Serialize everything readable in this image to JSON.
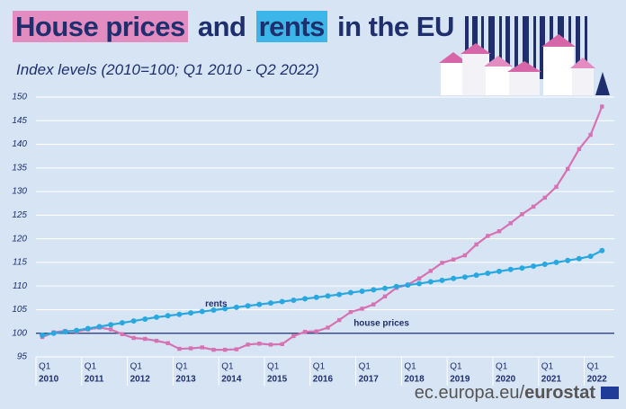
{
  "chart_data": {
    "type": "line",
    "title_parts": [
      "House prices",
      "and",
      "rents",
      "in the EU"
    ],
    "subtitle": "Index levels (2010=100; Q1 2010  - Q2 2022)",
    "source_parts": [
      "ec.europa.eu/",
      "eurostat"
    ],
    "categories": [
      "Q1",
      null,
      null,
      null,
      "Q1",
      null,
      null,
      null,
      "Q1",
      null,
      null,
      null,
      "Q1",
      null,
      null,
      null,
      "Q1",
      null,
      null,
      null,
      "Q1",
      null,
      null,
      null,
      "Q1",
      null,
      null,
      null,
      "Q1",
      null,
      null,
      null,
      "Q1",
      null,
      null,
      null,
      "Q1",
      null,
      null,
      null,
      "Q1",
      null,
      null,
      null,
      "Q1",
      null,
      null,
      null,
      "Q1",
      null
    ],
    "year_labels": [
      "2010",
      "2011",
      "2012",
      "2013",
      "2014",
      "2015",
      "2016",
      "2017",
      "2018",
      "2019",
      "2020",
      "2021",
      "2022"
    ],
    "series": [
      {
        "name": "house prices",
        "color": "#d672b3",
        "values": [
          99.2,
          100.2,
          100.5,
          100.4,
          100.8,
          101.2,
          100.8,
          99.8,
          99.0,
          98.8,
          98.4,
          97.9,
          96.7,
          96.8,
          97.0,
          96.5,
          96.5,
          96.6,
          97.6,
          97.8,
          97.6,
          97.7,
          99.4,
          100.3,
          100.4,
          101.2,
          102.8,
          104.5,
          105.2,
          106.1,
          107.8,
          109.6,
          110.3,
          111.6,
          113.2,
          114.9,
          115.6,
          116.5,
          118.8,
          120.6,
          121.6,
          123.3,
          125.2,
          126.8,
          128.7,
          131.0,
          134.8,
          139.0,
          142.0,
          148.0
        ]
      },
      {
        "name": "rents",
        "color": "#29a8e0",
        "values": [
          99.6,
          100.0,
          100.3,
          100.6,
          101.0,
          101.4,
          101.8,
          102.2,
          102.6,
          103.0,
          103.4,
          103.7,
          104.0,
          104.3,
          104.6,
          104.9,
          105.2,
          105.5,
          105.8,
          106.1,
          106.4,
          106.7,
          107.0,
          107.3,
          107.6,
          107.9,
          108.2,
          108.6,
          108.9,
          109.2,
          109.5,
          109.9,
          110.2,
          110.5,
          110.9,
          111.2,
          111.6,
          111.9,
          112.3,
          112.7,
          113.1,
          113.5,
          113.8,
          114.2,
          114.6,
          115.0,
          115.4,
          115.8,
          116.3,
          117.5
        ]
      }
    ],
    "baseline": 100,
    "ylim": [
      95,
      150
    ],
    "yticks": [
      95,
      100,
      105,
      110,
      115,
      120,
      125,
      130,
      135,
      140,
      145,
      150
    ],
    "grid": true
  }
}
